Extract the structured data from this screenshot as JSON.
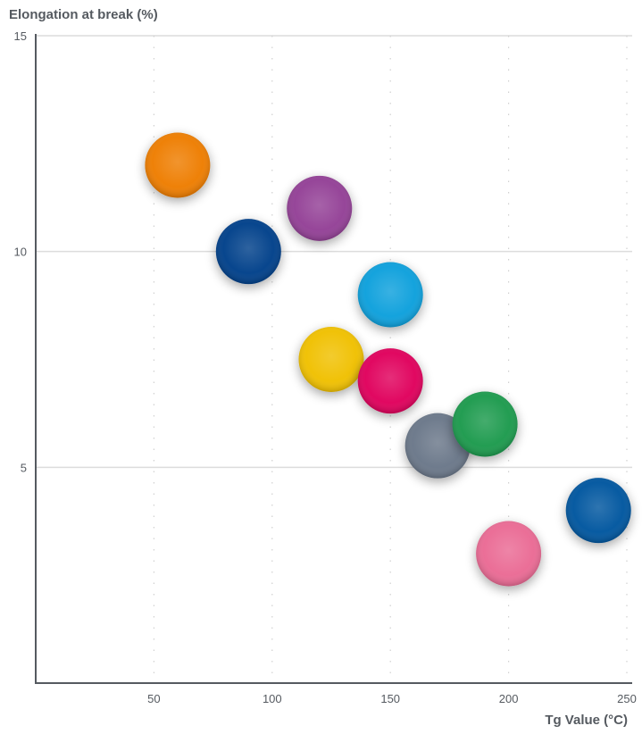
{
  "chart_data": {
    "type": "scatter",
    "title": "",
    "xlabel": "Tg Value (°C)",
    "ylabel": "Elongation at break (%)",
    "xlim": [
      0,
      250
    ],
    "ylim": [
      0,
      15
    ],
    "xticks": [
      50,
      100,
      150,
      200,
      250
    ],
    "yticks": [
      5,
      10,
      15
    ],
    "grid": {
      "horizontal": true,
      "vertical": "dotted"
    },
    "points": [
      {
        "x": 60,
        "y": 12,
        "color": "#ee7d00"
      },
      {
        "x": 90,
        "y": 10,
        "color": "#003f8a"
      },
      {
        "x": 120,
        "y": 11,
        "color": "#934096"
      },
      {
        "x": 150,
        "y": 9,
        "color": "#0ba0dc"
      },
      {
        "x": 125,
        "y": 7.5,
        "color": "#f0c000"
      },
      {
        "x": 150,
        "y": 7,
        "color": "#e0005c"
      },
      {
        "x": 170,
        "y": 5.5,
        "color": "#6a7789"
      },
      {
        "x": 190,
        "y": 6,
        "color": "#1c9a4e"
      },
      {
        "x": 238,
        "y": 4,
        "color": "#00569f"
      },
      {
        "x": 200,
        "y": 3,
        "color": "#ea6b94"
      }
    ]
  }
}
